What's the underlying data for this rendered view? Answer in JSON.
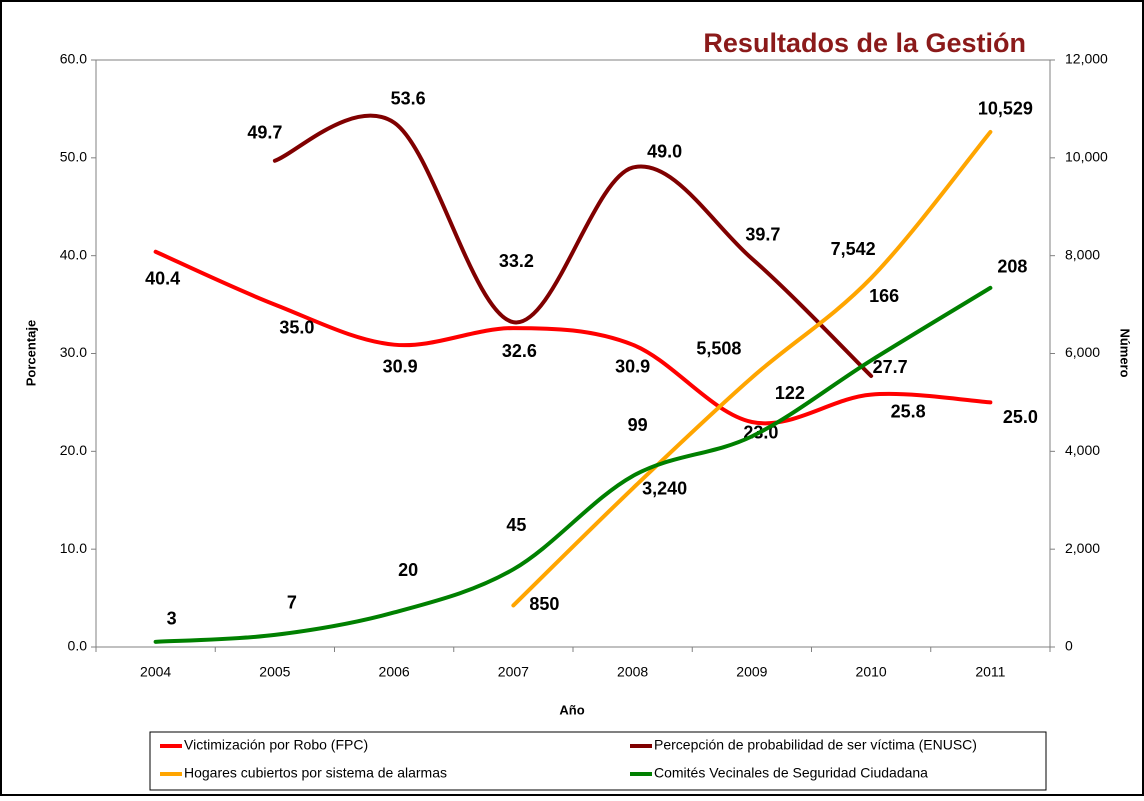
{
  "chart_data": {
    "type": "line",
    "title": "Resultados de la Gestión",
    "x_label": "Año",
    "y_label": "Porcentaje",
    "y2_label": "Número",
    "categories": [
      "2004",
      "2005",
      "2006",
      "2007",
      "2008",
      "2009",
      "2010",
      "2011"
    ],
    "ylim": [
      0,
      60
    ],
    "yticks": [
      {
        "value": 0,
        "label": "0.0"
      },
      {
        "value": 10,
        "label": "10.0"
      },
      {
        "value": 20,
        "label": "20.0"
      },
      {
        "value": 30,
        "label": "30.0"
      },
      {
        "value": 40,
        "label": "40.0"
      },
      {
        "value": 50,
        "label": "50.0"
      },
      {
        "value": 60,
        "label": "60.0"
      }
    ],
    "y2lim": [
      0,
      12000
    ],
    "y2ticks": [
      0,
      {
        "value": 2000,
        "label": "2,000"
      },
      {
        "value": 4000,
        "label": "4,000"
      },
      {
        "value": 6000,
        "label": "6,000"
      },
      {
        "value": 8000,
        "label": "8,000"
      },
      {
        "value": 10000,
        "label": "10,000"
      },
      {
        "value": 12000,
        "label": "12,000"
      }
    ],
    "y3lim": [
      0,
      340
    ],
    "grid": false,
    "legend": "bottom",
    "series": [
      {
        "name": "Victimización por Robo (FPC)",
        "color": "#ff0000",
        "axis": "y",
        "values": [
          40.4,
          35.0,
          30.9,
          32.6,
          30.9,
          23.0,
          25.8,
          25.0
        ],
        "value_labels": [
          "40.4",
          "35.0",
          "30.9",
          "32.6",
          "30.9",
          "23.0",
          "25.8",
          "25.0"
        ]
      },
      {
        "name": "Percepción de probabilidad de ser víctima (ENUSC)",
        "color": "#800000",
        "axis": "y",
        "values": [
          null,
          49.7,
          53.6,
          33.2,
          49.0,
          39.7,
          27.7,
          null
        ],
        "value_labels": [
          null,
          "49.7",
          "53.6",
          "33.2",
          "49.0",
          "39.7",
          "27.7",
          null
        ]
      },
      {
        "name": "Hogares cubiertos por sistema de alarmas",
        "color": "#ffa500",
        "axis": "y2",
        "values": [
          null,
          null,
          null,
          850,
          3240,
          5508,
          7542,
          10529
        ],
        "value_labels": [
          null,
          null,
          null,
          "850",
          "3,240",
          "5,508",
          "7,542",
          "10,529"
        ]
      },
      {
        "name": "Comités Vecinales de Seguridad Ciudadana",
        "color": "#008000",
        "axis": "y3",
        "values": [
          3,
          7,
          20,
          45,
          99,
          122,
          166,
          208
        ]
      }
    ]
  }
}
